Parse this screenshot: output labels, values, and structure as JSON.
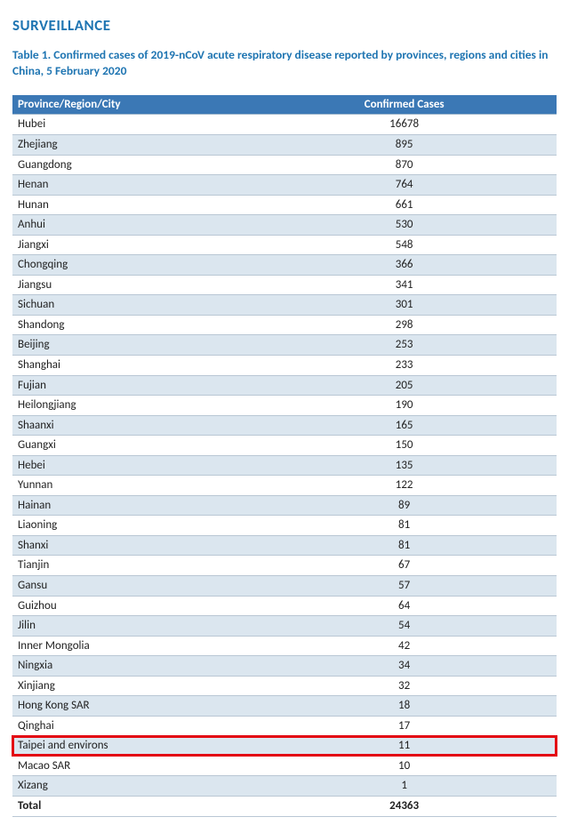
{
  "section_title": "SURVEILLANCE",
  "caption": "Table 1. Confirmed cases of 2019-nCoV acute respiratory disease reported by provinces, regions and cities in China, 5 February 2020",
  "columns": {
    "region": "Province/Region/City",
    "cases": "Confirmed Cases"
  },
  "rows": [
    {
      "region": "Hubei",
      "cases": "16678"
    },
    {
      "region": "Zhejiang",
      "cases": "895"
    },
    {
      "region": "Guangdong",
      "cases": "870"
    },
    {
      "region": "Henan",
      "cases": "764"
    },
    {
      "region": "Hunan",
      "cases": "661"
    },
    {
      "region": "Anhui",
      "cases": "530"
    },
    {
      "region": "Jiangxi",
      "cases": "548"
    },
    {
      "region": "Chongqing",
      "cases": "366"
    },
    {
      "region": "Jiangsu",
      "cases": "341"
    },
    {
      "region": "Sichuan",
      "cases": "301"
    },
    {
      "region": "Shandong",
      "cases": "298"
    },
    {
      "region": "Beijing",
      "cases": "253"
    },
    {
      "region": "Shanghai",
      "cases": "233"
    },
    {
      "region": "Fujian",
      "cases": "205"
    },
    {
      "region": "Heilongjiang",
      "cases": "190"
    },
    {
      "region": "Shaanxi",
      "cases": "165"
    },
    {
      "region": "Guangxi",
      "cases": "150"
    },
    {
      "region": "Hebei",
      "cases": "135"
    },
    {
      "region": "Yunnan",
      "cases": "122"
    },
    {
      "region": "Hainan",
      "cases": "89"
    },
    {
      "region": "Liaoning",
      "cases": "81"
    },
    {
      "region": "Shanxi",
      "cases": "81"
    },
    {
      "region": "Tianjin",
      "cases": "67"
    },
    {
      "region": "Gansu",
      "cases": "57"
    },
    {
      "region": "Guizhou",
      "cases": "64"
    },
    {
      "region": "Jilin",
      "cases": "54"
    },
    {
      "region": "Inner Mongolia",
      "cases": "42"
    },
    {
      "region": "Ningxia",
      "cases": "34"
    },
    {
      "region": "Xinjiang",
      "cases": "32"
    },
    {
      "region": "Hong Kong SAR",
      "cases": "18"
    },
    {
      "region": "Qinghai",
      "cases": "17"
    },
    {
      "region": "Taipei and environs",
      "cases": "11",
      "highlight": true
    },
    {
      "region": "Macao SAR",
      "cases": "10"
    },
    {
      "region": "Xizang",
      "cases": "1"
    }
  ],
  "total": {
    "label": "Total",
    "cases": "24363"
  },
  "style": {
    "header_bg": "#3b78b5",
    "stripe_bg": "#dbe6ef",
    "border_color": "#b9c7d4",
    "highlight_color": "#e30613",
    "accent_text": "#1f75b2"
  }
}
